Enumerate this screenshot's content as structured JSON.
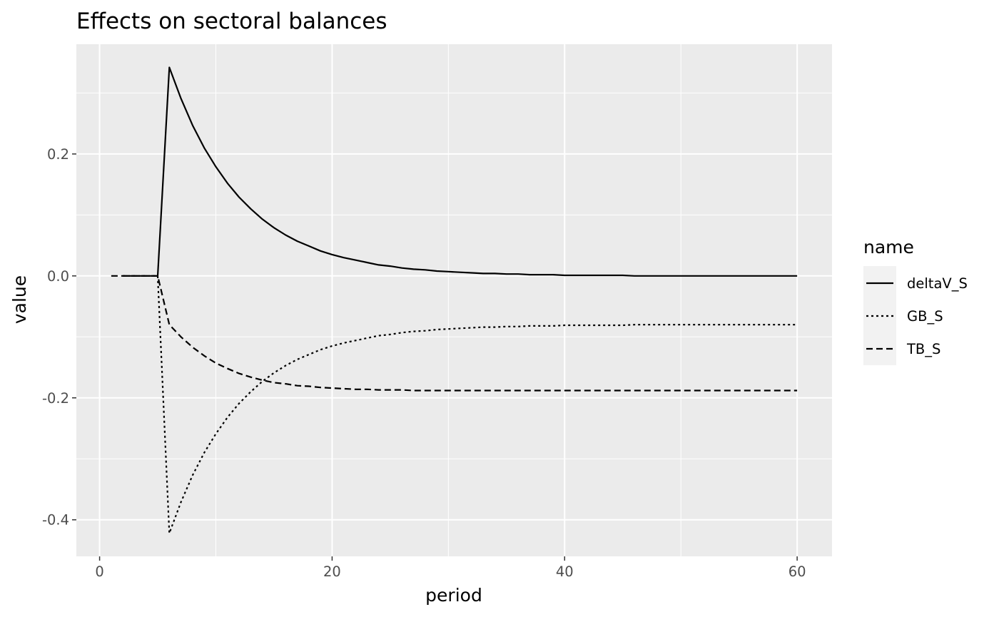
{
  "chart_data": {
    "type": "line",
    "title": "Effects on sectoral balances",
    "xlabel": "period",
    "ylabel": "value",
    "xlim": [
      -2,
      63
    ],
    "ylim": [
      -0.46,
      0.38
    ],
    "x_ticks": [
      0,
      20,
      40,
      60
    ],
    "x_tick_labels": [
      "0",
      "20",
      "40",
      "60"
    ],
    "y_ticks": [
      -0.4,
      -0.2,
      0.0,
      0.2
    ],
    "y_tick_labels": [
      "-0.4",
      "-0.2",
      "0.0",
      "0.2"
    ],
    "grid": true,
    "background": "#ebebeb",
    "legend": {
      "title": "name",
      "position": "right",
      "entries": [
        {
          "label": "deltaV_S",
          "linetype": "solid"
        },
        {
          "label": "GB_S",
          "linetype": "dotted"
        },
        {
          "label": "TB_S",
          "linetype": "dashed"
        }
      ]
    },
    "series": [
      {
        "name": "deltaV_S",
        "linetype": "solid",
        "color": "#000000",
        "x": [
          2,
          3,
          4,
          5,
          6,
          7,
          8,
          9,
          10,
          11,
          12,
          13,
          14,
          15,
          16,
          17,
          18,
          19,
          20,
          21,
          22,
          23,
          24,
          25,
          26,
          27,
          28,
          29,
          30,
          31,
          32,
          33,
          34,
          35,
          36,
          37,
          38,
          39,
          40,
          41,
          42,
          43,
          44,
          45,
          46,
          47,
          48,
          49,
          50,
          51,
          52,
          53,
          54,
          55,
          56,
          57,
          58,
          59,
          60
        ],
        "y": [
          0,
          0,
          0,
          0,
          0.342,
          0.291,
          0.247,
          0.21,
          0.179,
          0.152,
          0.129,
          0.11,
          0.093,
          0.079,
          0.067,
          0.057,
          0.049,
          0.041,
          0.035,
          0.03,
          0.026,
          0.022,
          0.018,
          0.016,
          0.013,
          0.011,
          0.01,
          0.008,
          0.007,
          0.006,
          0.005,
          0.004,
          0.004,
          0.003,
          0.003,
          0.002,
          0.002,
          0.002,
          0.001,
          0.001,
          0.001,
          0.001,
          0.001,
          0.001,
          0,
          0,
          0,
          0,
          0,
          0,
          0,
          0,
          0,
          0,
          0,
          0,
          0,
          0,
          0
        ]
      },
      {
        "name": "GB_S",
        "linetype": "dotted",
        "color": "#000000",
        "x": [
          2,
          3,
          4,
          5,
          6,
          7,
          8,
          9,
          10,
          11,
          12,
          13,
          14,
          15,
          16,
          17,
          18,
          19,
          20,
          21,
          22,
          23,
          24,
          25,
          26,
          27,
          28,
          29,
          30,
          31,
          32,
          33,
          34,
          35,
          36,
          37,
          38,
          39,
          40,
          41,
          42,
          43,
          44,
          45,
          46,
          47,
          48,
          49,
          50,
          51,
          52,
          53,
          54,
          55,
          56,
          57,
          58,
          59,
          60
        ],
        "y": [
          0,
          0,
          0,
          0,
          -0.422,
          -0.371,
          -0.327,
          -0.29,
          -0.259,
          -0.232,
          -0.209,
          -0.19,
          -0.173,
          -0.159,
          -0.147,
          -0.137,
          -0.129,
          -0.121,
          -0.115,
          -0.11,
          -0.106,
          -0.102,
          -0.098,
          -0.096,
          -0.093,
          -0.091,
          -0.09,
          -0.088,
          -0.087,
          -0.086,
          -0.085,
          -0.084,
          -0.084,
          -0.083,
          -0.083,
          -0.082,
          -0.082,
          -0.082,
          -0.081,
          -0.081,
          -0.081,
          -0.081,
          -0.081,
          -0.081,
          -0.08,
          -0.08,
          -0.08,
          -0.08,
          -0.08,
          -0.08,
          -0.08,
          -0.08,
          -0.08,
          -0.08,
          -0.08,
          -0.08,
          -0.08,
          -0.08,
          -0.08
        ]
      },
      {
        "name": "TB_S",
        "linetype": "dashed",
        "color": "#000000",
        "x": [
          1,
          2,
          3,
          4,
          5,
          6,
          7,
          8,
          9,
          10,
          11,
          12,
          13,
          14,
          15,
          16,
          17,
          18,
          19,
          20,
          21,
          22,
          23,
          24,
          25,
          26,
          27,
          28,
          29,
          30,
          31,
          32,
          33,
          34,
          35,
          36,
          37,
          38,
          39,
          40,
          41,
          42,
          43,
          44,
          45,
          46,
          47,
          48,
          49,
          50,
          51,
          52,
          53,
          54,
          55,
          56,
          57,
          58,
          59,
          60
        ],
        "y": [
          0,
          0,
          0,
          0,
          0,
          -0.08,
          -0.1,
          -0.117,
          -0.131,
          -0.143,
          -0.152,
          -0.16,
          -0.166,
          -0.171,
          -0.175,
          -0.177,
          -0.18,
          -0.181,
          -0.183,
          -0.184,
          -0.185,
          -0.186,
          -0.186,
          -0.187,
          -0.187,
          -0.187,
          -0.188,
          -0.188,
          -0.188,
          -0.188,
          -0.188,
          -0.188,
          -0.188,
          -0.188,
          -0.188,
          -0.188,
          -0.188,
          -0.188,
          -0.188,
          -0.188,
          -0.188,
          -0.188,
          -0.188,
          -0.188,
          -0.188,
          -0.188,
          -0.188,
          -0.188,
          -0.188,
          -0.188,
          -0.188,
          -0.188,
          -0.188,
          -0.188,
          -0.188,
          -0.188,
          -0.188,
          -0.188,
          -0.188,
          -0.188
        ]
      }
    ]
  }
}
